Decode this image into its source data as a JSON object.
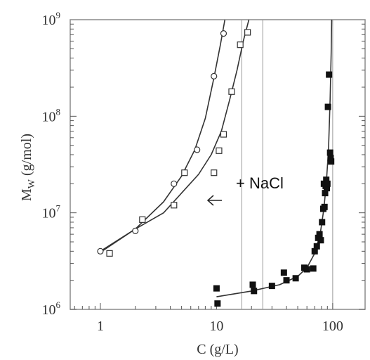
{
  "chart_data": {
    "type": "scatter",
    "xlabel": "C (g/L)",
    "ylabel_main": "M",
    "ylabel_sub": "W",
    "ylabel_unit": " (g/mol)",
    "x_scale": "log",
    "y_scale": "log",
    "xlim": [
      0.55,
      190
    ],
    "ylim": [
      1000000,
      1000000000
    ],
    "x_ticks": [
      {
        "value": 1,
        "label": "1"
      },
      {
        "value": 10,
        "label": "10"
      },
      {
        "value": 100,
        "label": "100"
      }
    ],
    "y_ticks": [
      {
        "value": 1000000,
        "base": "10",
        "exp": "6"
      },
      {
        "value": 10000000,
        "base": "10",
        "exp": "7"
      },
      {
        "value": 100000000,
        "base": "10",
        "exp": "8"
      },
      {
        "value": 1000000000,
        "base": "10",
        "exp": "9"
      }
    ],
    "vertical_lines": [
      16.5,
      25,
      100
    ],
    "annotation": {
      "text": "+ NaCl",
      "arrow_to": {
        "x": 4.8,
        "y": 15000000
      }
    },
    "series": [
      {
        "marker": "open-circle",
        "points": [
          {
            "x": 1.0,
            "y": 4000000
          },
          {
            "x": 2.0,
            "y": 6500000
          },
          {
            "x": 4.3,
            "y": 20000000
          },
          {
            "x": 6.8,
            "y": 45000000
          },
          {
            "x": 9.5,
            "y": 260000000
          },
          {
            "x": 11.5,
            "y": 720000000
          }
        ],
        "fit": [
          {
            "x": 1.0,
            "y": 4000000
          },
          {
            "x": 2.0,
            "y": 6800000
          },
          {
            "x": 3.5,
            "y": 13000000
          },
          {
            "x": 5.0,
            "y": 24000000
          },
          {
            "x": 6.5,
            "y": 45000000
          },
          {
            "x": 8.0,
            "y": 95000000
          },
          {
            "x": 9.5,
            "y": 250000000
          },
          {
            "x": 10.8,
            "y": 550000000
          },
          {
            "x": 11.8,
            "y": 1000000000
          }
        ]
      },
      {
        "marker": "open-square",
        "points": [
          {
            "x": 1.2,
            "y": 3800000
          },
          {
            "x": 2.3,
            "y": 8500000
          },
          {
            "x": 4.3,
            "y": 12000000
          },
          {
            "x": 5.3,
            "y": 26000000
          },
          {
            "x": 9.5,
            "y": 26000000
          },
          {
            "x": 10.5,
            "y": 44000000
          },
          {
            "x": 11.5,
            "y": 65000000
          },
          {
            "x": 13.5,
            "y": 180000000
          },
          {
            "x": 16.0,
            "y": 550000000
          },
          {
            "x": 18.5,
            "y": 740000000
          }
        ],
        "fit": [
          {
            "x": 1.0,
            "y": 3900000
          },
          {
            "x": 2.0,
            "y": 6800000
          },
          {
            "x": 3.5,
            "y": 10000000
          },
          {
            "x": 5.0,
            "y": 16000000
          },
          {
            "x": 7.0,
            "y": 25000000
          },
          {
            "x": 9.0,
            "y": 40000000
          },
          {
            "x": 11.0,
            "y": 70000000
          },
          {
            "x": 13.0,
            "y": 150000000
          },
          {
            "x": 15.0,
            "y": 300000000
          },
          {
            "x": 17.0,
            "y": 600000000
          },
          {
            "x": 19.0,
            "y": 1000000000
          }
        ]
      },
      {
        "marker": "filled-square",
        "points": [
          {
            "x": 10,
            "y": 1650000
          },
          {
            "x": 10.2,
            "y": 1150000
          },
          {
            "x": 20.5,
            "y": 1800000
          },
          {
            "x": 21,
            "y": 1550000
          },
          {
            "x": 30,
            "y": 1750000
          },
          {
            "x": 38,
            "y": 2400000
          },
          {
            "x": 40,
            "y": 2000000
          },
          {
            "x": 48,
            "y": 2100000
          },
          {
            "x": 57,
            "y": 2700000
          },
          {
            "x": 60,
            "y": 2600000
          },
          {
            "x": 68,
            "y": 2650000
          },
          {
            "x": 70,
            "y": 4000000
          },
          {
            "x": 73,
            "y": 4500000
          },
          {
            "x": 75,
            "y": 5500000
          },
          {
            "x": 77,
            "y": 6000000
          },
          {
            "x": 79,
            "y": 5200000
          },
          {
            "x": 81,
            "y": 8000000
          },
          {
            "x": 83,
            "y": 11000000
          },
          {
            "x": 84,
            "y": 20000000
          },
          {
            "x": 85,
            "y": 11500000
          },
          {
            "x": 86,
            "y": 16000000
          },
          {
            "x": 87,
            "y": 19000000
          },
          {
            "x": 88,
            "y": 22000000
          },
          {
            "x": 89,
            "y": 18000000
          },
          {
            "x": 90,
            "y": 20000000
          },
          {
            "x": 91,
            "y": 125000000
          },
          {
            "x": 93,
            "y": 270000000
          },
          {
            "x": 95,
            "y": 42000000
          },
          {
            "x": 96,
            "y": 37000000
          },
          {
            "x": 97,
            "y": 34000000
          }
        ],
        "fit": [
          {
            "x": 10,
            "y": 1350000
          },
          {
            "x": 20,
            "y": 1550000
          },
          {
            "x": 35,
            "y": 1800000
          },
          {
            "x": 50,
            "y": 2200000
          },
          {
            "x": 60,
            "y": 2700000
          },
          {
            "x": 70,
            "y": 3800000
          },
          {
            "x": 78,
            "y": 6000000
          },
          {
            "x": 84,
            "y": 11000000
          },
          {
            "x": 88,
            "y": 20000000
          },
          {
            "x": 92,
            "y": 45000000
          },
          {
            "x": 95,
            "y": 150000000
          },
          {
            "x": 97,
            "y": 450000000
          },
          {
            "x": 98,
            "y": 1000000000
          }
        ]
      }
    ]
  }
}
